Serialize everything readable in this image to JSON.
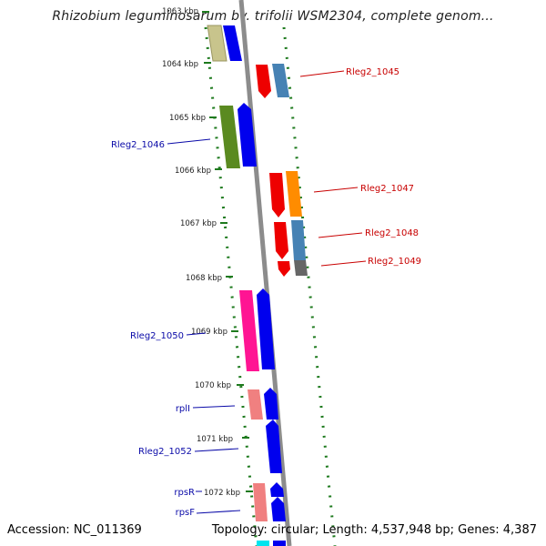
{
  "title": "Rhizobium leguminosarum bv. trifolii WSM2304, complete genom...",
  "footer": {
    "accession": "Accession: NC_011369",
    "topology": "Topology: circular; Length: 4,537,948 bp; Genes: 4,387"
  },
  "colors": {
    "backbone": "#8c8c8c",
    "ticks": "#1e7a1e",
    "label_forward": "#0a0aa8",
    "label_reverse": "#c80000"
  },
  "ticks": [
    "1063 kbp",
    "1064 kbp",
    "1065 kbp",
    "1066 kbp",
    "1067 kbp",
    "1068 kbp",
    "1069 kbp",
    "1070 kbp",
    "1071 kbp",
    "1072 kbp"
  ],
  "forward_labels": [
    "Rleg2_1046",
    "Rleg2_1050",
    "rplI",
    "Rleg2_1052",
    "rpsR",
    "rpsF"
  ],
  "reverse_labels": [
    "Rleg2_1045",
    "Rleg2_1047",
    "Rleg2_1048",
    "Rleg2_1049"
  ]
}
